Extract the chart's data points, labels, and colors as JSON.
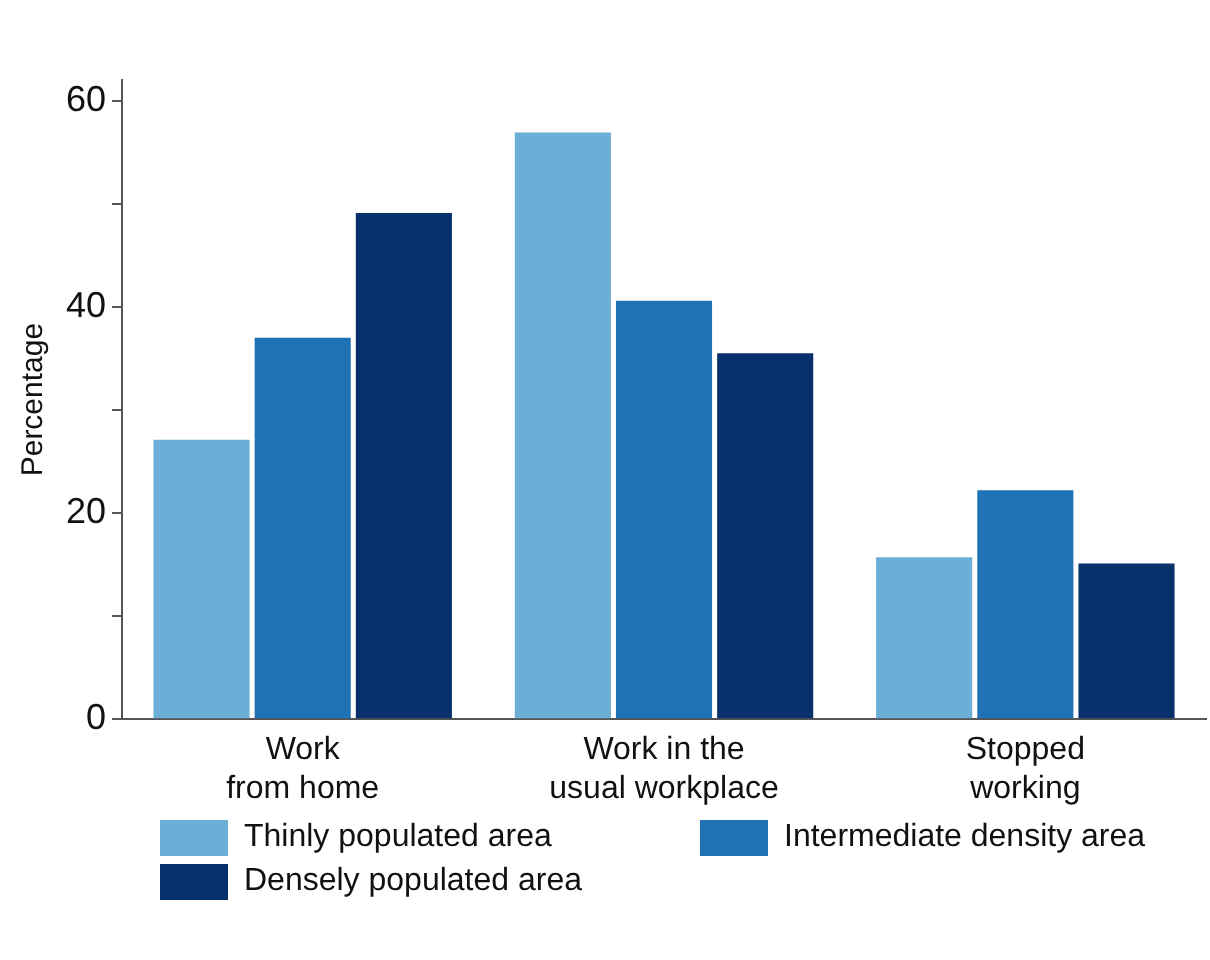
{
  "chart_data": {
    "type": "bar",
    "ylabel": "Percentage",
    "categories": [
      "Work\nfrom home",
      "Work in the\nusual workplace",
      "Stopped\nworking"
    ],
    "series": [
      {
        "name": "Thinly populated area",
        "color": "#6baed6",
        "values": [
          27.1,
          56.9,
          15.7
        ]
      },
      {
        "name": "Intermediate density area",
        "color": "#2171b5",
        "values": [
          37.0,
          40.6,
          22.2
        ]
      },
      {
        "name": "Densely populated area",
        "color": "#08306b",
        "values": [
          49.1,
          35.5,
          15.1
        ]
      }
    ],
    "ylim": [
      0,
      62
    ],
    "yticks": [
      0,
      {
        "value": 10,
        "label": null
      },
      20,
      {
        "value": 30,
        "label": null
      },
      40,
      {
        "value": 50,
        "label": null
      },
      60
    ],
    "grid": false,
    "legend": "bottom"
  }
}
